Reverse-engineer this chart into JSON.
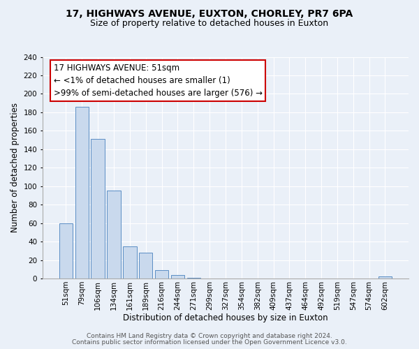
{
  "title": "17, HIGHWAYS AVENUE, EUXTON, CHORLEY, PR7 6PA",
  "subtitle": "Size of property relative to detached houses in Euxton",
  "xlabel": "Distribution of detached houses by size in Euxton",
  "ylabel": "Number of detached properties",
  "bar_labels": [
    "51sqm",
    "79sqm",
    "106sqm",
    "134sqm",
    "161sqm",
    "189sqm",
    "216sqm",
    "244sqm",
    "271sqm",
    "299sqm",
    "327sqm",
    "354sqm",
    "382sqm",
    "409sqm",
    "437sqm",
    "464sqm",
    "492sqm",
    "519sqm",
    "547sqm",
    "574sqm",
    "602sqm"
  ],
  "bar_values": [
    60,
    186,
    151,
    95,
    35,
    28,
    9,
    4,
    1,
    0,
    0,
    0,
    0,
    0,
    0,
    0,
    0,
    0,
    0,
    0,
    2
  ],
  "bar_color": "#c9d9ed",
  "bar_edge_color": "#5b8ec4",
  "annotation_title": "17 HIGHWAYS AVENUE: 51sqm",
  "annotation_line1": "← <1% of detached houses are smaller (1)",
  "annotation_line2": ">99% of semi-detached houses are larger (576) →",
  "annotation_box_edge": "#cc0000",
  "annotation_box_bg": "#ffffff",
  "ylim": [
    0,
    240
  ],
  "yticks": [
    0,
    20,
    40,
    60,
    80,
    100,
    120,
    140,
    160,
    180,
    200,
    220,
    240
  ],
  "footer1": "Contains HM Land Registry data © Crown copyright and database right 2024.",
  "footer2": "Contains public sector information licensed under the Open Government Licence v3.0.",
  "bg_color": "#eaf0f8",
  "plot_bg_color": "#eaf0f8",
  "title_fontsize": 10,
  "subtitle_fontsize": 9,
  "axis_label_fontsize": 8.5,
  "tick_fontsize": 7.5,
  "annotation_fontsize": 8.5,
  "footer_fontsize": 6.5
}
